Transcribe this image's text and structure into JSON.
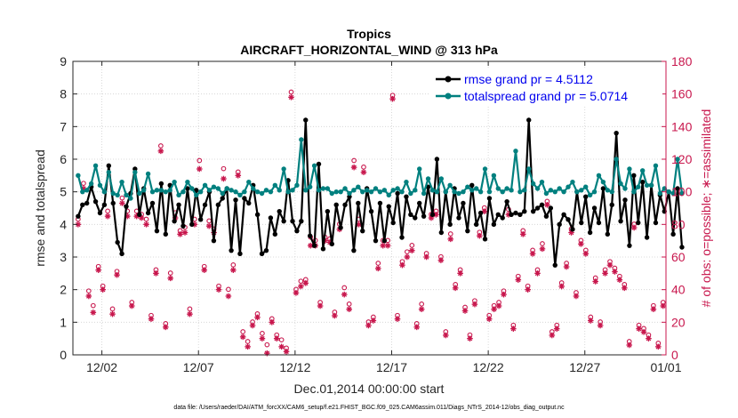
{
  "chart_data": {
    "type": "line",
    "title": "Tropics",
    "subtitle": "AIRCRAFT_HORIZONTAL_WIND @ 313 hPa",
    "xlabel": "Dec.01,2014 00:00:00 start",
    "ylabel": "rmse and totalspread",
    "y2label": "# of obs: o=possible; ∗=assimilated",
    "footnote": "data file: /Users/raeder/DAI/ATM_forcXX/CAM6_setup/f.e21.FHIST_BGC.f09_025.CAM6assim.011/Diags_NTrS_2014-12/obs_diag_output.nc",
    "xlim": [
      0.5,
      31.2
    ],
    "ylim": [
      0,
      9
    ],
    "y2lim": [
      0,
      180
    ],
    "xticks": [
      2,
      7,
      12,
      17,
      22,
      27,
      32
    ],
    "xtick_labels": [
      "12/02",
      "12/07",
      "12/12",
      "12/17",
      "12/22",
      "12/27",
      "01/01"
    ],
    "yticks": [
      0,
      1,
      2,
      3,
      4,
      5,
      6,
      7,
      8,
      9
    ],
    "y2ticks": [
      0,
      20,
      40,
      60,
      80,
      100,
      120,
      140,
      160,
      180
    ],
    "legend_position": "top-right",
    "colors": {
      "rmse": "#000000",
      "spread": "#00807f",
      "obs": "#c8174d",
      "axis2": "#c8174d",
      "legend_text": "#0000ee"
    },
    "series": [
      {
        "name": "rmse grand pr = 4.5112",
        "key": "rmse",
        "values": [
          4.25,
          4.6,
          4.65,
          5.15,
          4.7,
          4.35,
          4.6,
          5.8,
          4.65,
          3.45,
          3.1,
          4.55,
          4.95,
          5.7,
          4.3,
          5.1,
          4.35,
          4.65,
          3.8,
          5.25,
          3.7,
          5.2,
          4.1,
          4.6,
          3.95,
          5.1,
          4.0,
          5.05,
          4.15,
          4.6,
          5.0,
          3.5,
          4.6,
          4.8,
          5.1,
          3.2,
          4.75,
          3.1,
          4.8,
          4.65,
          5.2,
          4.3,
          3.1,
          3.2,
          4.2,
          3.7,
          4.4,
          4.1,
          5.35,
          4.1,
          3.8,
          4.1,
          7.2,
          3.65,
          3.35,
          5.85,
          3.25,
          4.4,
          3.4,
          4.6,
          3.9,
          4.6,
          4.85,
          3.2,
          4.65,
          3.8,
          5.1,
          4.4,
          3.5,
          4.65,
          3.5,
          4.55,
          4.05,
          4.95,
          3.6,
          4.85,
          4.3,
          4.2,
          4.65,
          4.25,
          5.15,
          4.3,
          6.0,
          3.75,
          5.0,
          4.0,
          5.1,
          4.2,
          4.65,
          3.8,
          5.2,
          4.0,
          4.35,
          3.55,
          4.8,
          4.0,
          4.3,
          4.2,
          4.7,
          4.3,
          4.35,
          4.3,
          4.4,
          7.2,
          4.4,
          4.5,
          4.6,
          4.25,
          4.5,
          2.75,
          4.0,
          4.3,
          4.15,
          3.85,
          5.0,
          4.05,
          4.85,
          3.75,
          4.5,
          4.05,
          5.1,
          3.7,
          4.6,
          6.8,
          4.1,
          4.75,
          3.35,
          5.5,
          4.05,
          5.3,
          3.6,
          5.2,
          4.05,
          4.9,
          4.4,
          5.0,
          3.7,
          5.1,
          3.3
        ],
        "stroke": "#000000"
      },
      {
        "name": "totalspread grand pr = 5.0714",
        "key": "spread",
        "values": [
          5.5,
          5.0,
          5.05,
          5.25,
          5.8,
          5.2,
          5.0,
          5.6,
          4.95,
          4.9,
          5.3,
          4.9,
          4.8,
          5.6,
          4.95,
          5.05,
          5.55,
          5.0,
          5.05,
          5.05,
          5.0,
          5.05,
          5.3,
          4.9,
          5.0,
          5.3,
          5.1,
          4.9,
          5.0,
          5.2,
          5.05,
          5.15,
          5.1,
          4.95,
          5.1,
          5.05,
          5.0,
          4.9,
          5.0,
          5.3,
          5.1,
          5.0,
          4.95,
          5.05,
          5.0,
          5.2,
          5.05,
          5.7,
          5.0,
          5.05,
          5.2,
          6.6,
          5.05,
          5.15,
          5.8,
          5.05,
          5.1,
          5.1,
          4.95,
          5.0,
          5.0,
          5.1,
          4.95,
          5.05,
          5.15,
          5.0,
          5.05,
          5.0,
          5.1,
          5.0,
          5.05,
          4.9,
          5.05,
          5.1,
          5.0,
          5.3,
          4.95,
          5.05,
          5.7,
          4.95,
          5.4,
          5.05,
          5.0,
          5.4,
          5.0,
          5.2,
          5.0,
          4.95,
          5.0,
          5.15,
          5.05,
          5.1,
          5.0,
          5.7,
          5.0,
          5.5,
          5.1,
          5.0,
          5.1,
          5.05,
          6.25,
          5.0,
          5.05,
          5.7,
          5.25,
          5.1,
          5.3,
          4.95,
          5.05,
          5.0,
          5.1,
          5.0,
          5.15,
          5.3,
          5.0,
          5.05,
          5.15,
          4.9,
          5.0,
          5.5,
          5.3,
          5.05,
          5.0,
          6.0,
          5.25,
          5.1,
          5.7,
          5.0,
          5.15,
          5.65,
          5.2,
          5.2,
          5.8,
          4.95,
          5.1,
          5.0,
          4.95,
          6.0,
          4.95
        ],
        "stroke": "#00807f"
      }
    ],
    "obs_assimilated": [
      [
        0.77,
        80
      ],
      [
        1.05,
        102
      ],
      [
        1.32,
        36
      ],
      [
        1.55,
        26
      ],
      [
        1.82,
        52
      ],
      [
        2.05,
        40
      ],
      [
        2.3,
        85
      ],
      [
        2.55,
        25
      ],
      [
        2.78,
        49
      ],
      [
        3.05,
        93
      ],
      [
        3.32,
        85
      ],
      [
        3.55,
        30
      ],
      [
        3.8,
        85
      ],
      [
        4.05,
        84
      ],
      [
        4.3,
        80
      ],
      [
        4.55,
        22
      ],
      [
        4.8,
        50
      ],
      [
        5.05,
        125
      ],
      [
        5.3,
        17
      ],
      [
        5.55,
        47
      ],
      [
        5.8,
        84
      ],
      [
        6.05,
        74
      ],
      [
        6.3,
        75
      ],
      [
        6.55,
        25
      ],
      [
        6.8,
        80
      ],
      [
        7.05,
        114
      ],
      [
        7.3,
        52
      ],
      [
        7.55,
        79
      ],
      [
        7.8,
        75
      ],
      [
        8.05,
        40
      ],
      [
        8.3,
        108
      ],
      [
        8.55,
        36
      ],
      [
        8.8,
        52
      ],
      [
        9.05,
        110
      ],
      [
        9.3,
        11
      ],
      [
        9.55,
        5
      ],
      [
        9.8,
        18
      ],
      [
        10.05,
        23
      ],
      [
        10.3,
        10
      ],
      [
        10.55,
        1
      ],
      [
        10.8,
        20
      ],
      [
        11.05,
        10
      ],
      [
        11.3,
        5
      ],
      [
        11.55,
        2
      ],
      [
        11.8,
        158
      ],
      [
        12.05,
        38
      ],
      [
        12.3,
        42
      ],
      [
        12.55,
        44
      ],
      [
        12.8,
        67
      ],
      [
        13.05,
        67
      ],
      [
        13.3,
        30
      ],
      [
        13.55,
        70
      ],
      [
        13.8,
        69
      ],
      [
        14.05,
        24
      ],
      [
        14.3,
        77
      ],
      [
        14.55,
        37
      ],
      [
        14.8,
        28
      ],
      [
        15.05,
        115
      ],
      [
        15.3,
        80
      ],
      [
        15.55,
        112
      ],
      [
        15.8,
        18
      ],
      [
        16.05,
        21
      ],
      [
        16.3,
        53
      ],
      [
        16.55,
        67
      ],
      [
        16.8,
        67
      ],
      [
        17.05,
        157
      ],
      [
        17.3,
        22
      ],
      [
        17.55,
        55
      ],
      [
        17.8,
        60
      ],
      [
        18.05,
        64
      ],
      [
        18.3,
        17
      ],
      [
        18.55,
        28
      ],
      [
        18.8,
        60
      ],
      [
        19.05,
        84
      ],
      [
        19.3,
        86
      ],
      [
        19.55,
        58
      ],
      [
        19.8,
        12
      ],
      [
        20.05,
        71
      ],
      [
        20.3,
        41
      ],
      [
        20.55,
        50
      ],
      [
        20.8,
        27
      ],
      [
        21.05,
        10
      ],
      [
        21.3,
        31
      ],
      [
        21.55,
        73
      ],
      [
        21.8,
        88
      ],
      [
        22.05,
        22
      ],
      [
        22.3,
        28
      ],
      [
        22.55,
        30
      ],
      [
        22.8,
        37
      ],
      [
        23.05,
        86
      ],
      [
        23.3,
        16
      ],
      [
        23.55,
        46
      ],
      [
        23.8,
        74
      ],
      [
        24.05,
        40
      ],
      [
        24.3,
        62
      ],
      [
        24.55,
        50
      ],
      [
        24.8,
        65
      ],
      [
        25.05,
        92
      ],
      [
        25.3,
        12
      ],
      [
        25.55,
        16
      ],
      [
        25.8,
        42
      ],
      [
        26.05,
        54
      ],
      [
        26.3,
        75
      ],
      [
        26.55,
        36
      ],
      [
        26.8,
        68
      ],
      [
        27.05,
        62
      ],
      [
        27.3,
        21
      ],
      [
        27.55,
        45
      ],
      [
        27.8,
        18
      ],
      [
        28.05,
        50
      ],
      [
        28.3,
        55
      ],
      [
        28.55,
        51
      ],
      [
        28.8,
        46
      ],
      [
        29.05,
        41
      ],
      [
        29.3,
        6
      ],
      [
        29.55,
        78
      ],
      [
        29.8,
        16
      ],
      [
        30.05,
        14
      ],
      [
        30.3,
        10
      ],
      [
        30.55,
        28
      ],
      [
        30.8,
        5
      ],
      [
        31.05,
        30
      ]
    ],
    "obs_possible": [
      [
        0.77,
        81
      ],
      [
        1.05,
        103
      ],
      [
        1.32,
        37
      ],
      [
        1.55,
        28
      ],
      [
        1.82,
        52
      ],
      [
        2.05,
        40
      ],
      [
        2.3,
        86
      ],
      [
        2.55,
        26
      ],
      [
        2.78,
        49
      ],
      [
        3.05,
        94
      ],
      [
        3.32,
        86
      ],
      [
        3.55,
        30
      ],
      [
        3.8,
        86
      ],
      [
        4.05,
        84
      ],
      [
        4.3,
        81
      ],
      [
        4.55,
        22
      ],
      [
        4.8,
        50
      ],
      [
        5.05,
        126
      ],
      [
        5.3,
        17
      ],
      [
        5.55,
        48
      ],
      [
        5.8,
        85
      ],
      [
        6.05,
        74
      ],
      [
        6.3,
        76
      ],
      [
        6.55,
        26
      ],
      [
        6.8,
        81
      ],
      [
        7.05,
        117
      ],
      [
        7.3,
        52
      ],
      [
        7.55,
        80
      ],
      [
        7.8,
        75
      ],
      [
        8.05,
        40
      ],
      [
        8.3,
        112
      ],
      [
        8.55,
        38
      ],
      [
        8.8,
        53
      ],
      [
        9.05,
        110
      ],
      [
        9.3,
        12
      ],
      [
        9.55,
        6
      ],
      [
        9.8,
        18
      ],
      [
        10.05,
        23
      ],
      [
        10.3,
        11
      ],
      [
        10.55,
        4
      ],
      [
        10.8,
        20
      ],
      [
        11.05,
        10
      ],
      [
        11.3,
        7
      ],
      [
        11.55,
        2
      ],
      [
        11.8,
        159
      ],
      [
        12.05,
        38
      ],
      [
        12.3,
        43
      ],
      [
        12.55,
        44
      ],
      [
        12.8,
        70
      ],
      [
        13.05,
        68
      ],
      [
        13.3,
        30
      ],
      [
        13.55,
        70
      ],
      [
        13.8,
        69
      ],
      [
        14.05,
        24
      ],
      [
        14.3,
        78
      ],
      [
        14.55,
        39
      ],
      [
        14.8,
        29
      ],
      [
        15.05,
        117
      ],
      [
        15.3,
        81
      ],
      [
        15.55,
        113
      ],
      [
        15.8,
        18
      ],
      [
        16.05,
        21
      ],
      [
        16.3,
        54
      ],
      [
        16.55,
        68
      ],
      [
        16.8,
        68
      ],
      [
        17.05,
        157
      ],
      [
        17.3,
        22
      ],
      [
        17.55,
        55
      ],
      [
        17.8,
        61
      ],
      [
        18.05,
        65
      ],
      [
        18.3,
        17
      ],
      [
        18.55,
        29
      ],
      [
        18.8,
        60
      ],
      [
        19.05,
        84
      ],
      [
        19.3,
        86
      ],
      [
        19.55,
        58
      ],
      [
        19.8,
        12
      ],
      [
        20.05,
        72
      ],
      [
        20.3,
        41
      ],
      [
        20.55,
        50
      ],
      [
        20.8,
        27
      ],
      [
        21.05,
        10
      ],
      [
        21.3,
        31
      ],
      [
        21.55,
        73
      ],
      [
        21.8,
        88
      ],
      [
        22.05,
        22
      ],
      [
        22.3,
        28
      ],
      [
        22.55,
        30
      ],
      [
        22.8,
        37
      ],
      [
        23.05,
        87
      ],
      [
        23.3,
        16
      ],
      [
        23.55,
        46
      ],
      [
        23.8,
        74
      ],
      [
        24.05,
        40
      ],
      [
        24.3,
        62
      ],
      [
        24.55,
        50
      ],
      [
        24.8,
        66
      ],
      [
        25.05,
        92
      ],
      [
        25.3,
        12
      ],
      [
        25.55,
        16
      ],
      [
        25.8,
        42
      ],
      [
        26.05,
        54
      ],
      [
        26.3,
        75
      ],
      [
        26.55,
        36
      ],
      [
        26.8,
        68
      ],
      [
        27.05,
        62
      ],
      [
        27.3,
        21
      ],
      [
        27.55,
        45
      ],
      [
        27.8,
        18
      ],
      [
        28.05,
        50
      ],
      [
        28.3,
        55
      ],
      [
        28.55,
        51
      ],
      [
        28.8,
        46
      ],
      [
        29.05,
        41
      ],
      [
        29.3,
        6
      ],
      [
        29.55,
        78
      ],
      [
        29.8,
        16
      ],
      [
        30.05,
        14
      ],
      [
        30.3,
        10
      ],
      [
        30.55,
        28
      ],
      [
        30.8,
        5
      ],
      [
        31.05,
        30
      ]
    ]
  }
}
